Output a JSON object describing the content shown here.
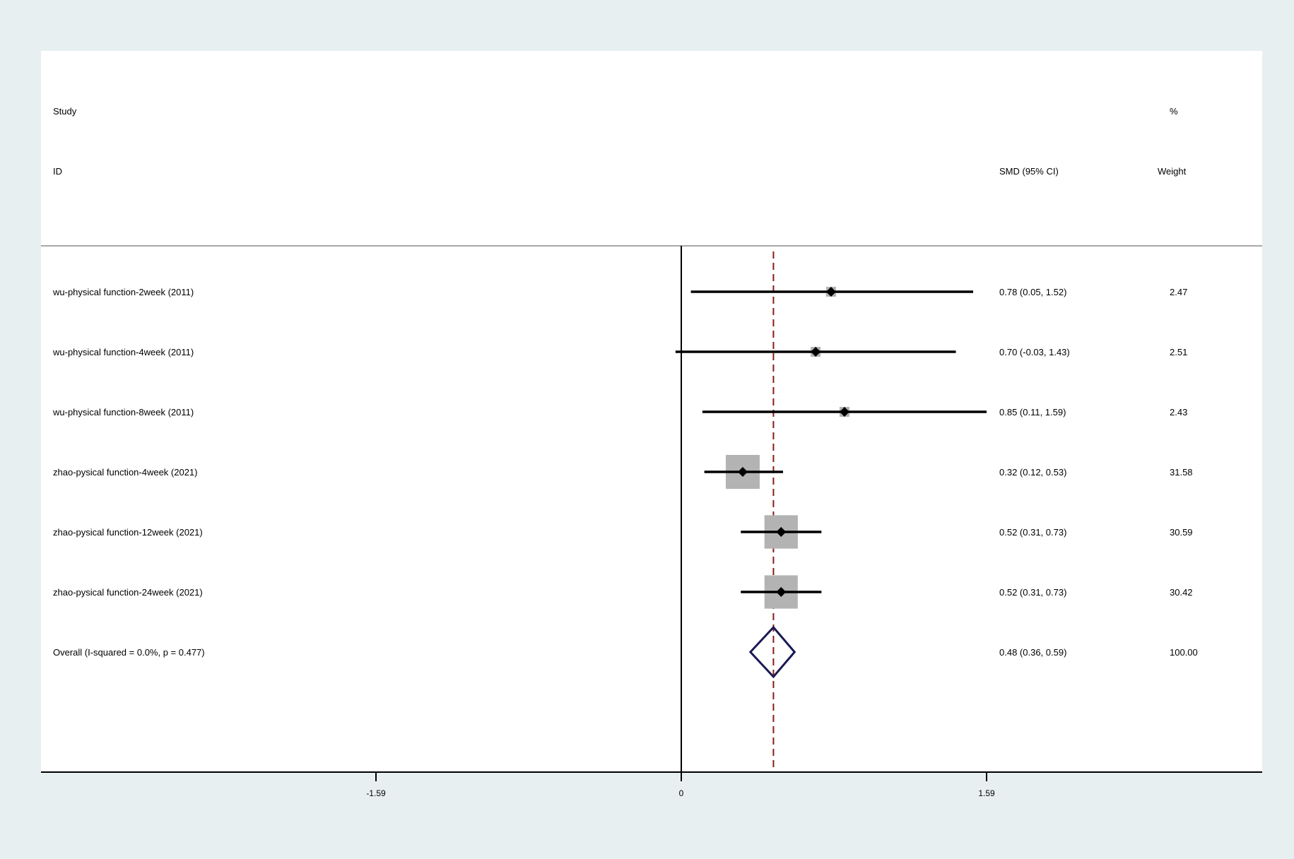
{
  "header": {
    "study": "Study",
    "id": "ID",
    "effect": "SMD (95% CI)",
    "pct": "%",
    "weight": "Weight"
  },
  "chart_data": {
    "type": "forest",
    "measure": "SMD (95% CI)",
    "xlim": [
      -1.8,
      1.8
    ],
    "xticks": [
      -1.59,
      0,
      1.59
    ],
    "xtick_labels": [
      "-1.59",
      "0",
      "1.59"
    ],
    "null_line": 0,
    "studies": [
      {
        "label": "wu-physical function-2week (2011)",
        "smd": 0.78,
        "lower": 0.05,
        "upper": 1.52,
        "ci_text": "0.78 (0.05, 1.52)",
        "weight": 2.47,
        "weight_text": "2.47"
      },
      {
        "label": "wu-physical function-4week (2011)",
        "smd": 0.7,
        "lower": -0.03,
        "upper": 1.43,
        "ci_text": "0.70 (-0.03, 1.43)",
        "weight": 2.51,
        "weight_text": "2.51"
      },
      {
        "label": "wu-physical function-8week (2011)",
        "smd": 0.85,
        "lower": 0.11,
        "upper": 1.59,
        "ci_text": "0.85 (0.11, 1.59)",
        "weight": 2.43,
        "weight_text": "2.43"
      },
      {
        "label": "zhao-pysical function-4week (2021)",
        "smd": 0.32,
        "lower": 0.12,
        "upper": 0.53,
        "ci_text": "0.32 (0.12, 0.53)",
        "weight": 31.58,
        "weight_text": "31.58"
      },
      {
        "label": "zhao-pysical function-12week (2021)",
        "smd": 0.52,
        "lower": 0.31,
        "upper": 0.73,
        "ci_text": "0.52 (0.31, 0.73)",
        "weight": 30.59,
        "weight_text": "30.59"
      },
      {
        "label": "zhao-pysical function-24week (2021)",
        "smd": 0.52,
        "lower": 0.31,
        "upper": 0.73,
        "ci_text": "0.52 (0.31, 0.73)",
        "weight": 30.42,
        "weight_text": "30.42"
      }
    ],
    "overall": {
      "label": "Overall  (I-squared = 0.0%, p = 0.477)",
      "smd": 0.48,
      "lower": 0.36,
      "upper": 0.59,
      "ci_text": "0.48 (0.36, 0.59)",
      "weight": 100.0,
      "weight_text": "100.00"
    },
    "colors": {
      "background": "#e8eff0",
      "panel": "#ffffff",
      "ci_line": "#000000",
      "box": "#b3b3b3",
      "diamond": "#1a1a55",
      "overall_line": "#8b1a1a",
      "separator": "#a8a8a8"
    }
  }
}
